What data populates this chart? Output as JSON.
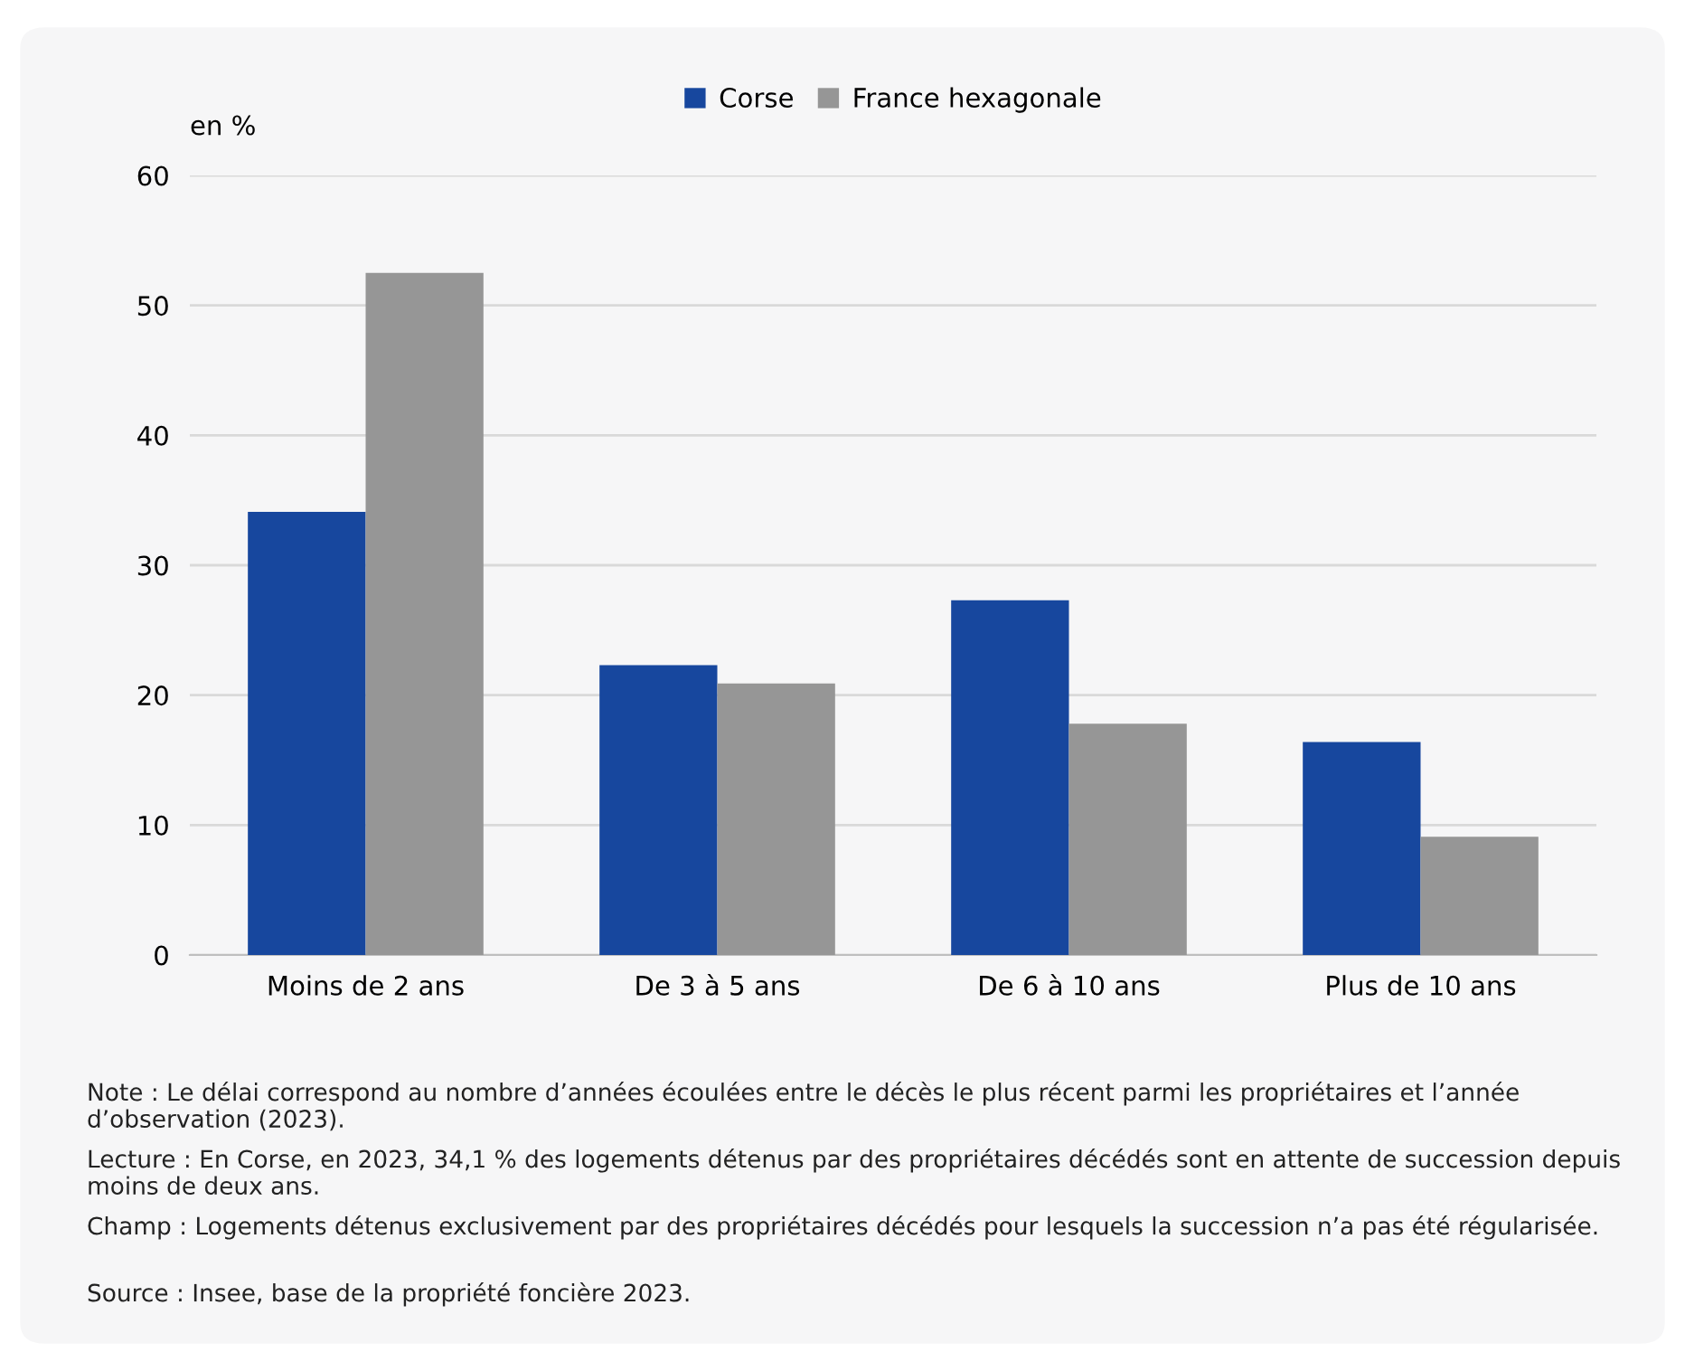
{
  "chart_data": {
    "type": "bar",
    "ylabel": "en %",
    "categories": [
      "Moins de 2 ans",
      "De 3 à 5 ans",
      "De 6 à 10 ans",
      "Plus de 10 ans"
    ],
    "series": [
      {
        "name": "Corse",
        "color": "#17479e",
        "values": [
          34.1,
          22.3,
          27.3,
          16.4
        ]
      },
      {
        "name": "France hexagonale",
        "color": "#969696",
        "values": [
          52.5,
          20.9,
          17.8,
          9.1
        ]
      }
    ],
    "ylim": [
      0,
      60
    ],
    "yticks": [
      0,
      10,
      20,
      30,
      40,
      50,
      60
    ],
    "grid": "y",
    "legend": "top",
    "annotations": [
      "Note : Le délai correspond au nombre d’années écoulées entre le décès le plus récent parmi les propriétaires et l’année d’observation (2023).",
      "Lecture : En Corse, en 2023, 34,1 % des logements détenus par des propriétaires décédés sont en attente de succession depuis moins de deux ans.",
      "Champ : Logements détenus exclusivement par des propriétaires décédés pour lesquels la succession n’a pas été régularisée.",
      "Source : Insee, base de la propriété foncière 2023."
    ]
  }
}
